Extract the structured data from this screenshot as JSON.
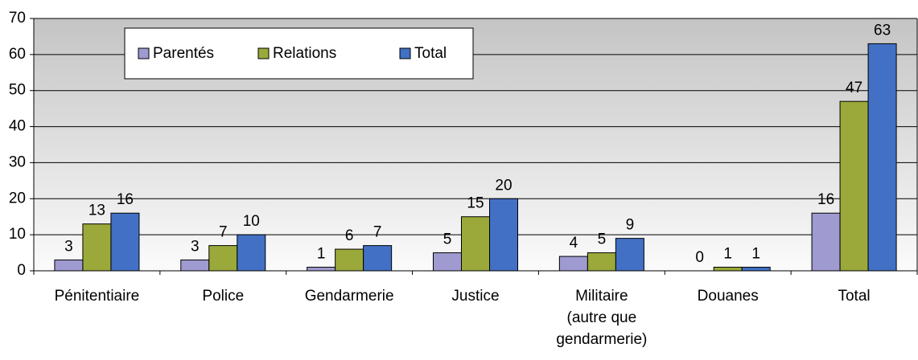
{
  "chart_data": {
    "type": "bar",
    "categories": [
      "Pénitentiaire",
      "Police",
      "Gendarmerie",
      "Justice",
      "Militaire\n(autre que\ngendarmerie)",
      "Douanes",
      "Total"
    ],
    "series": [
      {
        "name": "Parentés",
        "color": "#9f9ad0",
        "values": [
          3,
          3,
          1,
          5,
          4,
          0,
          16
        ]
      },
      {
        "name": "Relations",
        "color": "#9aa93a",
        "values": [
          13,
          7,
          6,
          15,
          5,
          1,
          47
        ]
      },
      {
        "name": "Total",
        "color": "#4270c4",
        "values": [
          16,
          10,
          7,
          20,
          9,
          1,
          63
        ]
      }
    ],
    "ylim": [
      0,
      70
    ],
    "yticks": [
      0,
      10,
      20,
      30,
      40,
      50,
      60,
      70
    ],
    "grid": true,
    "legend": "top-left"
  }
}
